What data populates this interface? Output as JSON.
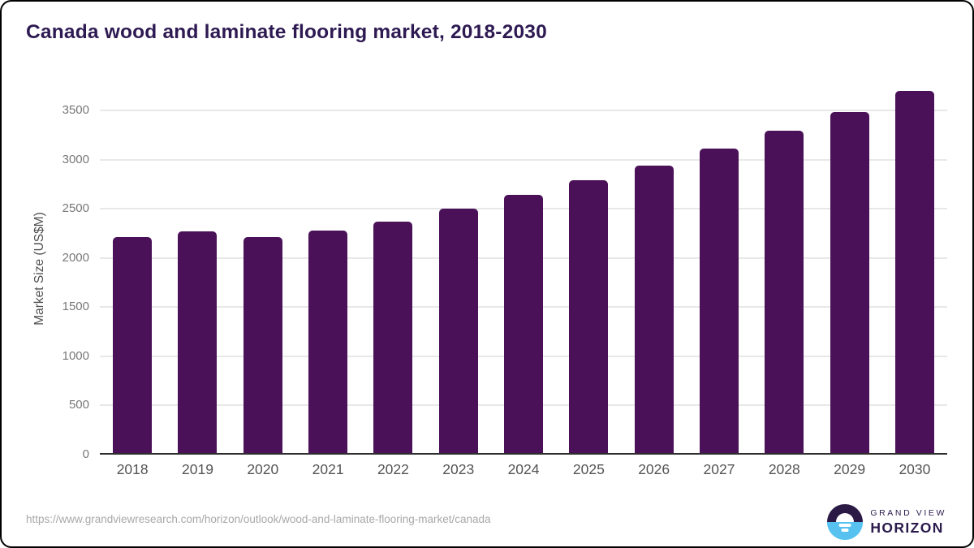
{
  "title": "Canada wood and laminate flooring market, 2018-2030",
  "colors": {
    "title_text": "#2e1a52",
    "bar": "#4a1158",
    "gridline": "#e8e8e8",
    "axis_line": "#2e2e2e",
    "y_tick_text": "#787878",
    "x_tick_text": "#545454",
    "source_text": "#a8a8a8",
    "logo_dark": "#2a1a45",
    "logo_blue": "#57c2f0",
    "logo_text": "#2b1b4d"
  },
  "chart_data": {
    "type": "bar",
    "title": "Canada wood and laminate flooring market, 2018-2030",
    "categories": [
      "2018",
      "2019",
      "2020",
      "2021",
      "2022",
      "2023",
      "2024",
      "2025",
      "2026",
      "2027",
      "2028",
      "2029",
      "2030"
    ],
    "values": [
      2210,
      2270,
      2210,
      2280,
      2370,
      2500,
      2640,
      2790,
      2940,
      3110,
      3290,
      3480,
      3700
    ],
    "xlabel": "",
    "ylabel": "Market Size (US$M)",
    "ylim": [
      0,
      3500
    ],
    "ytick_step": 500,
    "yticks": [
      0,
      500,
      1000,
      1500,
      2000,
      2500,
      3000,
      3500
    ],
    "grid": true,
    "legend": false,
    "bar_color": "#4a1158"
  },
  "footer": {
    "source_url": "https://www.grandviewresearch.com/horizon/outlook/wood-and-laminate-flooring-market/canada",
    "logo": {
      "line1": "GRAND VIEW",
      "line2": "HORIZON"
    }
  }
}
